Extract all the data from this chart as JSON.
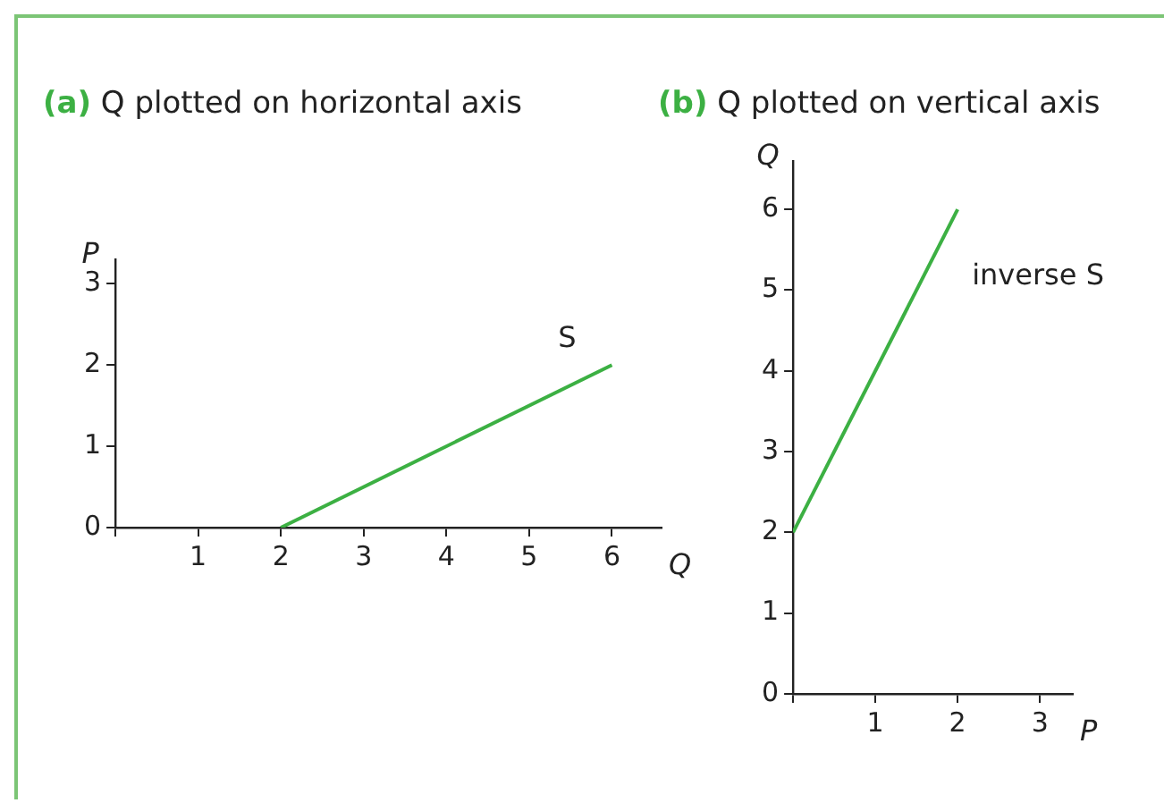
{
  "chart_data": [
    {
      "type": "line",
      "title": "(a) Q plotted on horizontal axis",
      "xlabel": "Q",
      "ylabel": "P",
      "x": [
        2,
        6
      ],
      "series": [
        {
          "name": "S",
          "color": "#3cb043",
          "values": [
            0,
            2
          ]
        }
      ],
      "xlim": [
        0,
        6.6
      ],
      "ylim": [
        0,
        3.3
      ],
      "xticks": [
        {
          "value": 0,
          "label": null
        },
        1,
        2,
        3,
        4,
        5,
        6
      ],
      "yticks": [
        0,
        1,
        2,
        3
      ],
      "marker": "none",
      "line_style": "solid",
      "legend": false,
      "grid": false
    },
    {
      "type": "line",
      "title": "(b) Q plotted on vertical axis",
      "xlabel": "P",
      "ylabel": "Q",
      "x": [
        0,
        2
      ],
      "series": [
        {
          "name": "inverse S",
          "color": "#3cb043",
          "values": [
            2,
            6
          ]
        }
      ],
      "xlim": [
        0,
        3.4
      ],
      "ylim": [
        0,
        6.6
      ],
      "xticks": [
        {
          "value": 0,
          "label": null
        },
        1,
        2,
        3
      ],
      "yticks": [
        0,
        1,
        2,
        3,
        4,
        5,
        6
      ],
      "marker": "none",
      "line_style": "solid",
      "legend": false,
      "grid": false
    }
  ]
}
